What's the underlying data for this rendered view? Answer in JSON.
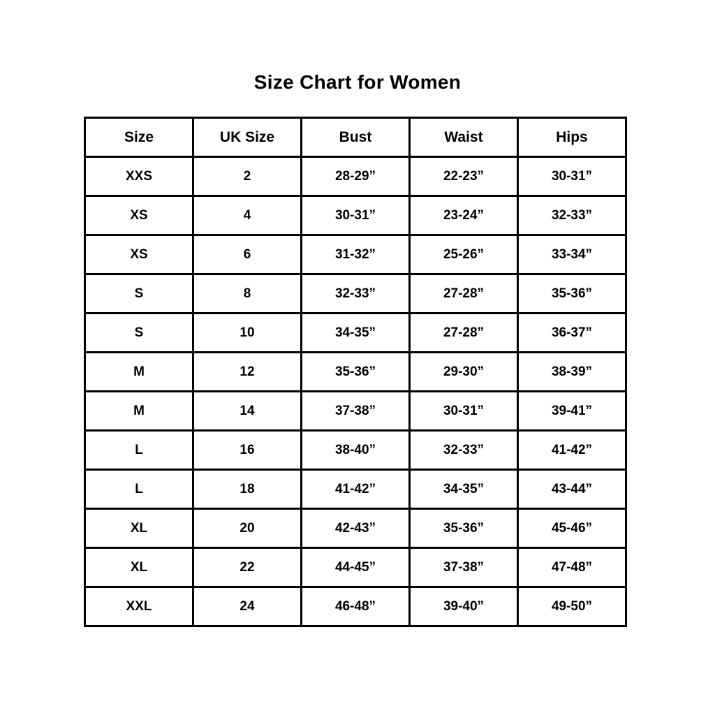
{
  "title": "Size Chart for Women",
  "chart_data": {
    "type": "table",
    "title": "Size Chart for Women",
    "columns": [
      "Size",
      "UK Size",
      "Bust",
      "Waist",
      "Hips"
    ],
    "rows": [
      [
        "XXS",
        "2",
        "28-29”",
        "22-23”",
        "30-31”"
      ],
      [
        "XS",
        "4",
        "30-31”",
        "23-24”",
        "32-33”"
      ],
      [
        "XS",
        "6",
        "31-32”",
        "25-26”",
        "33-34”"
      ],
      [
        "S",
        "8",
        "32-33”",
        "27-28”",
        "35-36”"
      ],
      [
        "S",
        "10",
        "34-35”",
        "27-28”",
        "36-37”"
      ],
      [
        "M",
        "12",
        "35-36”",
        "29-30”",
        "38-39”"
      ],
      [
        "M",
        "14",
        "37-38”",
        "30-31”",
        "39-41”"
      ],
      [
        "L",
        "16",
        "38-40”",
        "32-33”",
        "41-42”"
      ],
      [
        "L",
        "18",
        "41-42”",
        "34-35”",
        "43-44”"
      ],
      [
        "XL",
        "20",
        "42-43”",
        "35-36”",
        "45-46”"
      ],
      [
        "XL",
        "22",
        "44-45”",
        "37-38”",
        "47-48”"
      ],
      [
        "XXL",
        "24",
        "46-48”",
        "39-40”",
        "49-50”"
      ]
    ],
    "text_color": "#000000",
    "border_color": "#000000",
    "background_color": "#ffffff"
  }
}
